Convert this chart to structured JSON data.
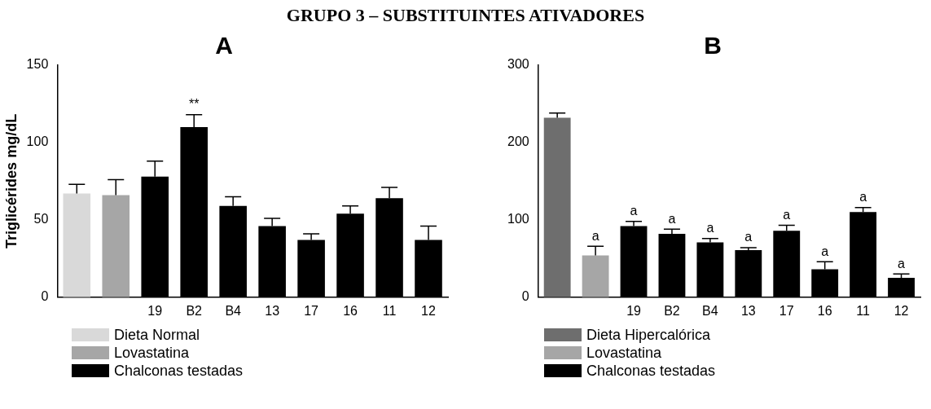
{
  "chart_data": [
    {
      "type": "bar",
      "title": "A",
      "ylabel": "Triglicérides mg/dL",
      "annotations": [
        "GRUPO 3 – SUBSTITUINTES ATIVADORES"
      ],
      "categories": [
        null,
        null,
        "19",
        "B2",
        "B4",
        "13",
        "17",
        "16",
        "11",
        "12"
      ],
      "series": [
        {
          "name": "Dieta Normal",
          "color": "#d9d9d9",
          "values": [
            67,
            null,
            null,
            null,
            null,
            null,
            null,
            null,
            null,
            null
          ],
          "errors": [
            [
              67,
              73
            ],
            null,
            null,
            null,
            null,
            null,
            null,
            null,
            null,
            null
          ]
        },
        {
          "name": "Lovastatina",
          "color": "#a6a6a6",
          "values": [
            null,
            66,
            null,
            null,
            null,
            null,
            null,
            null,
            null,
            null
          ],
          "errors": [
            null,
            [
              66,
              76
            ],
            null,
            null,
            null,
            null,
            null,
            null,
            null,
            null
          ]
        },
        {
          "name": "Chalconas testadas",
          "color": "#000000",
          "values": [
            null,
            null,
            78,
            110,
            59,
            46,
            37,
            54,
            64,
            37
          ],
          "errors": [
            null,
            null,
            [
              78,
              88
            ],
            [
              110,
              118
            ],
            [
              59,
              65
            ],
            [
              46,
              51
            ],
            [
              37,
              41
            ],
            [
              54,
              59
            ],
            [
              64,
              71
            ],
            [
              37,
              46
            ]
          ],
          "value_labels": [
            null,
            null,
            null,
            "**",
            null,
            null,
            null,
            null,
            null,
            null
          ]
        }
      ],
      "ylim": [
        0,
        150
      ],
      "yticks": [
        0,
        50,
        100,
        150
      ],
      "legend": "bottom"
    },
    {
      "type": "bar",
      "title": "B",
      "categories": [
        null,
        null,
        "19",
        "B2",
        "B4",
        "13",
        "17",
        "16",
        "11",
        "12"
      ],
      "series": [
        {
          "name": "Dieta Hipercalórica",
          "color": "#6e6e6e",
          "values": [
            232,
            null,
            null,
            null,
            null,
            null,
            null,
            null,
            null,
            null
          ],
          "errors": [
            [
              232,
              238
            ],
            null,
            null,
            null,
            null,
            null,
            null,
            null,
            null,
            null
          ]
        },
        {
          "name": "Lovastatina",
          "color": "#a6a6a6",
          "values": [
            null,
            54,
            null,
            null,
            null,
            null,
            null,
            null,
            null,
            null
          ],
          "errors": [
            null,
            [
              54,
              66
            ],
            null,
            null,
            null,
            null,
            null,
            null,
            null,
            null
          ],
          "value_labels": [
            null,
            "a",
            null,
            null,
            null,
            null,
            null,
            null,
            null,
            null
          ]
        },
        {
          "name": "Chalconas testadas",
          "color": "#000000",
          "values": [
            null,
            null,
            92,
            82,
            71,
            61,
            86,
            36,
            110,
            25
          ],
          "errors": [
            null,
            null,
            [
              92,
              98
            ],
            [
              82,
              88
            ],
            [
              71,
              76
            ],
            [
              61,
              64
            ],
            [
              86,
              93
            ],
            [
              36,
              46
            ],
            [
              110,
              116
            ],
            [
              25,
              30
            ]
          ],
          "value_labels": [
            null,
            null,
            "a",
            "a",
            "a",
            "a",
            "a",
            "a",
            "a",
            "a"
          ]
        }
      ],
      "ylim": [
        0,
        300
      ],
      "yticks": [
        0,
        100,
        200,
        300
      ],
      "legend": "bottom"
    }
  ]
}
